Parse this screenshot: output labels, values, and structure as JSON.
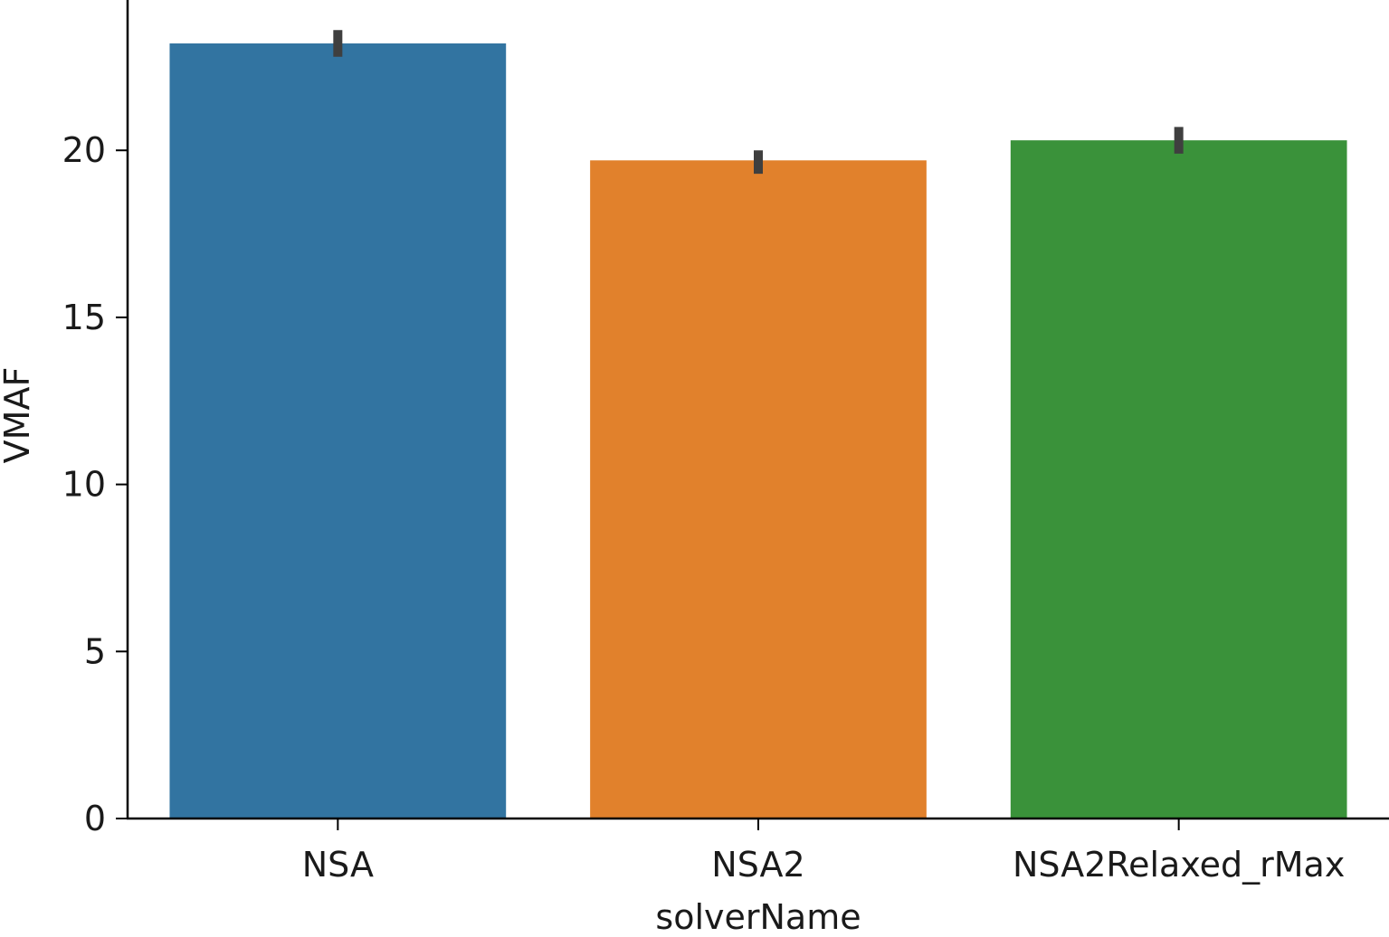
{
  "chart_data": {
    "type": "bar",
    "categories": [
      "NSA",
      "NSA2",
      "NSA2Relaxed_rMax"
    ],
    "values": [
      23.2,
      19.7,
      20.3
    ],
    "error_bars": [
      [
        22.8,
        23.6
      ],
      [
        19.3,
        20.0
      ],
      [
        19.9,
        20.7
      ]
    ],
    "colors": [
      "#3274a1",
      "#e1812c",
      "#3a923a"
    ],
    "error_color": "#3f3f3f",
    "xlabel": "solverName",
    "ylabel": "VMAF",
    "ylim": [
      0,
      24.5
    ],
    "yticks": [
      0,
      5,
      10,
      15,
      20
    ],
    "grid": false,
    "legend": "none"
  }
}
